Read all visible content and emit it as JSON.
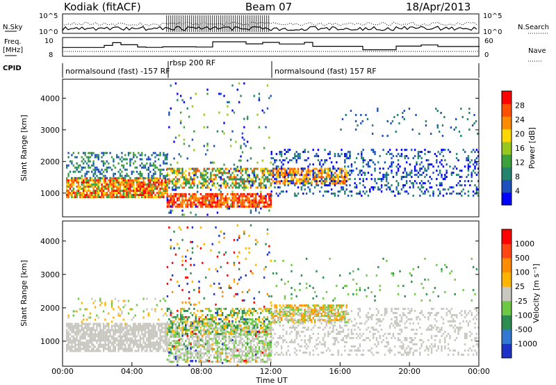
{
  "header": {
    "station": "Kodiak (fitACF)",
    "beam": "Beam 07",
    "date": "18/Apr/2013"
  },
  "summary": {
    "nsky_label": "N.Sky",
    "nsearch_label": "N.Search",
    "nsky_ticks": [
      "10^5",
      "10^0"
    ],
    "nsearch_ticks": [
      "10^5",
      "10^0"
    ],
    "freq_label": "Freq.",
    "freq_unit": "[MHz]",
    "freq_ticks": [
      "10",
      "8"
    ],
    "nave_label": "Nave",
    "nave_ticks": [
      "60",
      "0"
    ],
    "cpid_label": "CPID",
    "cpid_segments": [
      "normalsound (fast) -157 RF",
      "rbsp 200 RF",
      "normalsound (fast) 157 RF"
    ]
  },
  "chart_data": [
    {
      "type": "heatmap",
      "panel": "power",
      "ylabel": "Slant Range [km]",
      "ylim": [
        250,
        4600
      ],
      "yticks": [
        1000,
        2000,
        3000,
        4000
      ],
      "xlim": [
        0,
        24
      ],
      "colorbar_label": "Power [dB]",
      "colorbar_ticks": [
        "28",
        "24",
        "20",
        "16",
        "12",
        "8",
        "4"
      ],
      "colorbar_colors": [
        "#0000ff",
        "#1e50be",
        "#22846e",
        "#3ca03c",
        "#96c81e",
        "#ffd700",
        "#ff8c00",
        "#ff5000",
        "#ff0000"
      ],
      "features": [
        {
          "label": "echo band",
          "time_start": 0.2,
          "time_end": 6.0,
          "range_min": 850,
          "range_max": 1500
        },
        {
          "label": "echo band",
          "time_start": 5.8,
          "time_end": 12.0,
          "range_min": 600,
          "range_max": 1800
        },
        {
          "label": "echo band",
          "time_start": 12.0,
          "time_end": 16.5,
          "range_min": 1300,
          "range_max": 1800
        },
        {
          "label": "scatter",
          "time_start": 6.0,
          "time_end": 12.0,
          "range_min": 400,
          "range_max": 4500
        }
      ]
    },
    {
      "type": "heatmap",
      "panel": "velocity",
      "ylabel": "Slant Range [km]",
      "xlabel": "Time UT",
      "ylim": [
        250,
        4600
      ],
      "yticks": [
        1000,
        2000,
        3000,
        4000
      ],
      "xlim": [
        0,
        24
      ],
      "xticks": [
        "00:00",
        "04:00",
        "08:00",
        "12:00",
        "16:00",
        "20:00",
        "00:00"
      ],
      "colorbar_label": "Velocity [m s⁻¹]",
      "colorbar_ticks": [
        "1000",
        "500",
        "100",
        "25",
        "-25",
        "-100",
        "-500",
        "-1000"
      ],
      "colorbar_colors": [
        "#1e32c8",
        "#3278d2",
        "#2d8c50",
        "#6ec846",
        "#c8c8c0",
        "#ffb400",
        "#ff8c00",
        "#ff4614",
        "#ff0000"
      ],
      "features": [
        {
          "label": "ground scatter",
          "time_start": 0.2,
          "time_end": 6.0,
          "range_min": 700,
          "range_max": 1550
        },
        {
          "label": "ionospheric echo",
          "time_start": 12.0,
          "time_end": 16.5,
          "range_min": 1600,
          "range_max": 2100
        }
      ]
    }
  ]
}
